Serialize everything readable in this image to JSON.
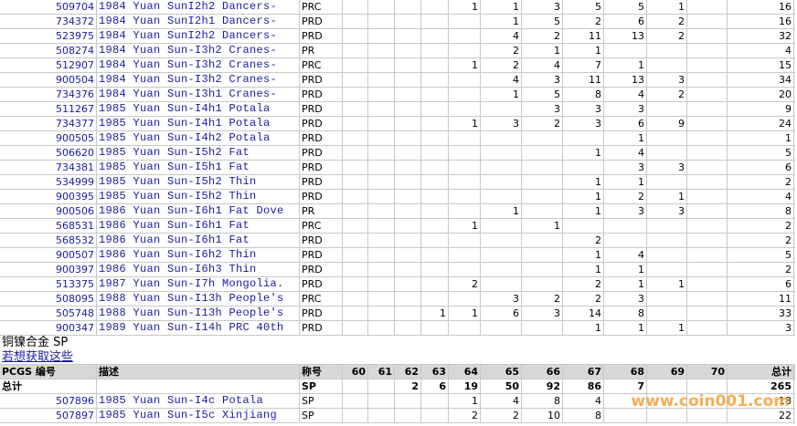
{
  "rows": [
    {
      "id": "509704",
      "description": "1984 Yuan SunI2h2 Dancers-",
      "designation": "PRC",
      "grades": [
        null,
        null,
        null,
        null,
        1,
        1,
        3,
        5,
        5,
        1,
        null
      ],
      "total": 16
    },
    {
      "id": "734372",
      "description": "1984 Yuan SunI2h1 Dancers-",
      "designation": "PRD",
      "grades": [
        null,
        null,
        null,
        null,
        null,
        1,
        5,
        2,
        6,
        2,
        null
      ],
      "total": 16
    },
    {
      "id": "523975",
      "description": "1984 Yuan SunI2h2 Dancers-",
      "designation": "PRD",
      "grades": [
        null,
        null,
        null,
        null,
        null,
        4,
        2,
        11,
        13,
        2,
        null
      ],
      "total": 32
    },
    {
      "id": "508274",
      "description": "1984 Yuan Sun-I3h2 Cranes-",
      "designation": "PR",
      "grades": [
        null,
        null,
        null,
        null,
        null,
        2,
        1,
        1,
        null,
        null,
        null
      ],
      "total": 4
    },
    {
      "id": "512907",
      "description": "1984 Yuan Sun-I3h2 Cranes-",
      "designation": "PRC",
      "grades": [
        null,
        null,
        null,
        null,
        1,
        2,
        4,
        7,
        1,
        null,
        null
      ],
      "total": 15
    },
    {
      "id": "900504",
      "description": "1984 Yuan Sun-I3h2 Cranes-",
      "designation": "PRD",
      "grades": [
        null,
        null,
        null,
        null,
        null,
        4,
        3,
        11,
        13,
        3,
        null
      ],
      "total": 34
    },
    {
      "id": "734376",
      "description": "1984 Yuan Sun-I3h1 Cranes-",
      "designation": "PRD",
      "grades": [
        null,
        null,
        null,
        null,
        null,
        1,
        5,
        8,
        4,
        2,
        null
      ],
      "total": 20
    },
    {
      "id": "511267",
      "description": "1985 Yuan Sun-I4h1 Potala",
      "designation": "PRD",
      "grades": [
        null,
        null,
        null,
        null,
        null,
        null,
        3,
        3,
        3,
        null,
        null
      ],
      "total": 9
    },
    {
      "id": "734377",
      "description": "1985 Yuan Sun-I4h1 Potala",
      "designation": "PRD",
      "grades": [
        null,
        null,
        null,
        null,
        1,
        3,
        2,
        3,
        6,
        9,
        null
      ],
      "total": 24
    },
    {
      "id": "900505",
      "description": "1985 Yuan Sun-I4h2 Potala",
      "designation": "PRD",
      "grades": [
        null,
        null,
        null,
        null,
        null,
        null,
        null,
        null,
        1,
        null,
        null
      ],
      "total": 1
    },
    {
      "id": "506620",
      "description": "1985 Yuan Sun-I5h2 Fat",
      "designation": "PRD",
      "grades": [
        null,
        null,
        null,
        null,
        null,
        null,
        null,
        1,
        4,
        null,
        null
      ],
      "total": 5
    },
    {
      "id": "734381",
      "description": "1985 Yuan Sun-I5h1 Fat",
      "designation": "PRD",
      "grades": [
        null,
        null,
        null,
        null,
        null,
        null,
        null,
        null,
        3,
        3,
        null
      ],
      "total": 6
    },
    {
      "id": "534999",
      "description": "1985 Yuan Sun-I5h2 Thin",
      "designation": "PRD",
      "grades": [
        null,
        null,
        null,
        null,
        null,
        null,
        null,
        1,
        1,
        null,
        null
      ],
      "total": 2
    },
    {
      "id": "900395",
      "description": "1985 Yuan Sun-I5h2 Thin",
      "designation": "PRD",
      "grades": [
        null,
        null,
        null,
        null,
        null,
        null,
        null,
        1,
        2,
        1,
        null
      ],
      "total": 4
    },
    {
      "id": "900506",
      "description": "1986 Yuan Sun-I6h1 Fat Dove",
      "designation": "PR",
      "grades": [
        null,
        null,
        null,
        null,
        null,
        1,
        null,
        1,
        3,
        3,
        null
      ],
      "total": 8
    },
    {
      "id": "568531",
      "description": "1986 Yuan Sun-I6h1 Fat",
      "designation": "PRC",
      "grades": [
        null,
        null,
        null,
        null,
        1,
        null,
        1,
        null,
        null,
        null,
        null
      ],
      "total": 2
    },
    {
      "id": "568532",
      "description": "1986 Yuan Sun-I6h1 Fat",
      "designation": "PRD",
      "grades": [
        null,
        null,
        null,
        null,
        null,
        null,
        null,
        2,
        null,
        null,
        null
      ],
      "total": 2
    },
    {
      "id": "900507",
      "description": "1986 Yuan Sun-I6h2 Thin",
      "designation": "PRD",
      "grades": [
        null,
        null,
        null,
        null,
        null,
        null,
        null,
        1,
        4,
        null,
        null
      ],
      "total": 5
    },
    {
      "id": "900397",
      "description": "1986 Yuan Sun-I6h3 Thin",
      "designation": "PRD",
      "grades": [
        null,
        null,
        null,
        null,
        null,
        null,
        null,
        1,
        1,
        null,
        null
      ],
      "total": 2
    },
    {
      "id": "513375",
      "description": "1987 Yuan Sun-I7h Mongolia.",
      "designation": "PRD",
      "grades": [
        null,
        null,
        null,
        null,
        2,
        null,
        null,
        2,
        1,
        1,
        null
      ],
      "total": 6
    },
    {
      "id": "508095",
      "description": "1988 Yuan Sun-I13h People's",
      "designation": "PRC",
      "grades": [
        null,
        null,
        null,
        null,
        null,
        3,
        2,
        2,
        3,
        null,
        null
      ],
      "total": 11
    },
    {
      "id": "505748",
      "description": "1988 Yuan Sun-I13h People's",
      "designation": "PRD",
      "grades": [
        null,
        null,
        null,
        1,
        1,
        6,
        3,
        14,
        8,
        null,
        null
      ],
      "total": 33
    },
    {
      "id": "900347",
      "description": "1989 Yuan Sun-I14h PRC 40th",
      "designation": "PRD",
      "grades": [
        null,
        null,
        null,
        null,
        null,
        null,
        null,
        1,
        1,
        1,
        null
      ],
      "total": 3
    }
  ],
  "section": {
    "title": "铜镍合金 SP",
    "link": "若想获取这些"
  },
  "header": [
    "PCGS 编号",
    "描述",
    "称号",
    "60",
    "61",
    "62",
    "63",
    "64",
    "65",
    "66",
    "67",
    "68",
    "69",
    "70",
    "总计"
  ],
  "summary": {
    "label": "总计",
    "designation": "SP",
    "grades": [
      null,
      null,
      2,
      6,
      19,
      50,
      92,
      86,
      7,
      null,
      null
    ],
    "total": 265
  },
  "rows2": [
    {
      "id": "507896",
      "description": "1985 Yuan Sun-I4c Potala",
      "designation": "SP",
      "grades": [
        null,
        null,
        null,
        null,
        1,
        4,
        8,
        4,
        null,
        null,
        null
      ],
      "total": 18
    },
    {
      "id": "507897",
      "description": "1985 Yuan Sun-I5c Xinjiang",
      "designation": "SP",
      "grades": [
        null,
        null,
        null,
        null,
        2,
        2,
        10,
        8,
        null,
        null,
        null
      ],
      "total": 22
    }
  ],
  "watermark": "www.coin001.com"
}
